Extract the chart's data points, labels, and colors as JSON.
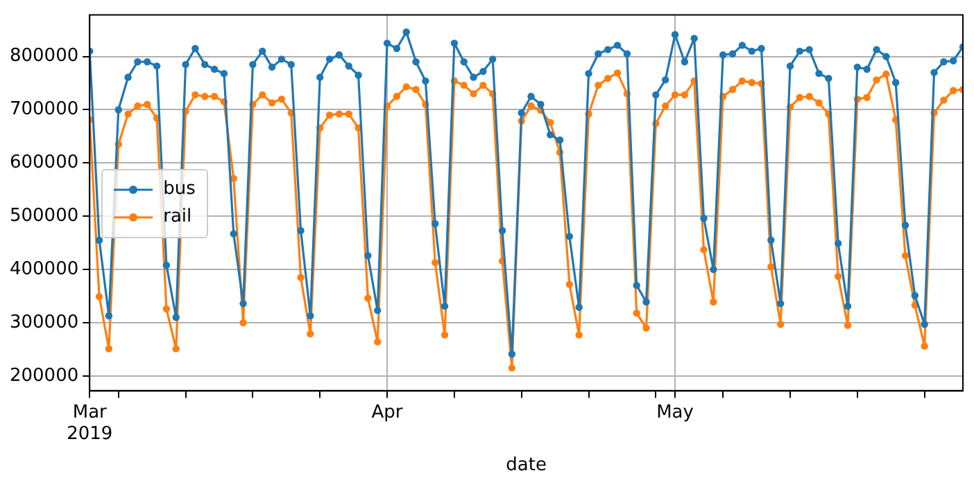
{
  "chart_data": {
    "type": "line",
    "xlabel": "date",
    "x": [
      "2019-03-01",
      "2019-03-02",
      "2019-03-03",
      "2019-03-04",
      "2019-03-05",
      "2019-03-06",
      "2019-03-07",
      "2019-03-08",
      "2019-03-09",
      "2019-03-10",
      "2019-03-11",
      "2019-03-12",
      "2019-03-13",
      "2019-03-14",
      "2019-03-15",
      "2019-03-16",
      "2019-03-17",
      "2019-03-18",
      "2019-03-19",
      "2019-03-20",
      "2019-03-21",
      "2019-03-22",
      "2019-03-23",
      "2019-03-24",
      "2019-03-25",
      "2019-03-26",
      "2019-03-27",
      "2019-03-28",
      "2019-03-29",
      "2019-03-30",
      "2019-03-31",
      "2019-04-01",
      "2019-04-02",
      "2019-04-03",
      "2019-04-04",
      "2019-04-05",
      "2019-04-06",
      "2019-04-07",
      "2019-04-08",
      "2019-04-09",
      "2019-04-10",
      "2019-04-11",
      "2019-04-12",
      "2019-04-13",
      "2019-04-14",
      "2019-04-15",
      "2019-04-16",
      "2019-04-17",
      "2019-04-18",
      "2019-04-19",
      "2019-04-20",
      "2019-04-21",
      "2019-04-22",
      "2019-04-23",
      "2019-04-24",
      "2019-04-25",
      "2019-04-26",
      "2019-04-27",
      "2019-04-28",
      "2019-04-29",
      "2019-04-30",
      "2019-05-01",
      "2019-05-02",
      "2019-05-03",
      "2019-05-04",
      "2019-05-05",
      "2019-05-06",
      "2019-05-07",
      "2019-05-08",
      "2019-05-09",
      "2019-05-10",
      "2019-05-11",
      "2019-05-12",
      "2019-05-13",
      "2019-05-14",
      "2019-05-15",
      "2019-05-16",
      "2019-05-17",
      "2019-05-18",
      "2019-05-19",
      "2019-05-20",
      "2019-05-21",
      "2019-05-22",
      "2019-05-23",
      "2019-05-24",
      "2019-05-25",
      "2019-05-26",
      "2019-05-27",
      "2019-05-28",
      "2019-05-29",
      "2019-05-30",
      "2019-05-31"
    ],
    "series": [
      {
        "name": "bus",
        "color": "#1f77b4",
        "values": [
          810000,
          455000,
          313000,
          700000,
          761000,
          790000,
          790000,
          782000,
          408000,
          310000,
          785000,
          815000,
          785000,
          776000,
          768000,
          467000,
          336000,
          785000,
          810000,
          780000,
          795000,
          785000,
          473000,
          313000,
          761000,
          795000,
          803000,
          782000,
          765000,
          426000,
          323000,
          825000,
          815000,
          846000,
          790000,
          754000,
          486000,
          331000,
          825000,
          790000,
          761000,
          772000,
          795000,
          473000,
          241000,
          694000,
          725000,
          710000,
          653000,
          643000,
          462000,
          329000,
          768000,
          805000,
          813000,
          821000,
          805000,
          370000,
          339000,
          728000,
          756000,
          841000,
          790000,
          834000,
          496000,
          400000,
          803000,
          805000,
          821000,
          810000,
          815000,
          455000,
          336000,
          782000,
          810000,
          813000,
          768000,
          759000,
          449000,
          331000,
          780000,
          776000,
          813000,
          800000,
          751000,
          483000,
          351000,
          297000,
          770000,
          790000,
          792000,
          818000
        ]
      },
      {
        "name": "rail",
        "color": "#ff7f0e",
        "values": [
          681000,
          349000,
          251000,
          635000,
          692000,
          707000,
          710000,
          684000,
          326000,
          251000,
          697000,
          728000,
          725000,
          725000,
          715000,
          571000,
          300000,
          710000,
          728000,
          713000,
          720000,
          694000,
          385000,
          279000,
          666000,
          690000,
          692000,
          692000,
          666000,
          346000,
          264000,
          707000,
          725000,
          743000,
          738000,
          710000,
          413000,
          277000,
          754000,
          746000,
          730000,
          746000,
          730000,
          416000,
          215000,
          679000,
          707000,
          699000,
          676000,
          620000,
          372000,
          277000,
          692000,
          746000,
          759000,
          769000,
          730000,
          318000,
          290000,
          674000,
          707000,
          728000,
          728000,
          754000,
          437000,
          339000,
          725000,
          738000,
          754000,
          751000,
          749000,
          405000,
          297000,
          705000,
          723000,
          725000,
          713000,
          692000,
          387000,
          295000,
          720000,
          723000,
          756000,
          767000,
          681000,
          426000,
          333000,
          256000,
          694000,
          718000,
          736000,
          738000
        ]
      }
    ],
    "xlim": [
      "2019-03-01",
      "2019-05-31"
    ],
    "xticks": [
      {
        "value": "2019-03-01",
        "label": "Mar\n2019"
      },
      {
        "value": "2019-03-04",
        "label": null
      },
      {
        "value": "2019-03-11",
        "label": null
      },
      {
        "value": "2019-03-18",
        "label": null
      },
      {
        "value": "2019-03-25",
        "label": null
      },
      {
        "value": "2019-04-01",
        "label": "Apr"
      },
      {
        "value": "2019-04-08",
        "label": null
      },
      {
        "value": "2019-04-15",
        "label": null
      },
      {
        "value": "2019-04-22",
        "label": null
      },
      {
        "value": "2019-04-29",
        "label": null
      },
      {
        "value": "2019-05-01",
        "label": "May"
      },
      {
        "value": "2019-05-06",
        "label": null
      },
      {
        "value": "2019-05-13",
        "label": null
      },
      {
        "value": "2019-05-20",
        "label": null
      },
      {
        "value": "2019-05-27",
        "label": null
      }
    ],
    "ylim": [
      172000,
      878000
    ],
    "yticks": [
      200000,
      300000,
      400000,
      500000,
      600000,
      700000,
      800000
    ],
    "grid": true,
    "legend": "center left",
    "marker": "circle",
    "line_style": "solid"
  }
}
